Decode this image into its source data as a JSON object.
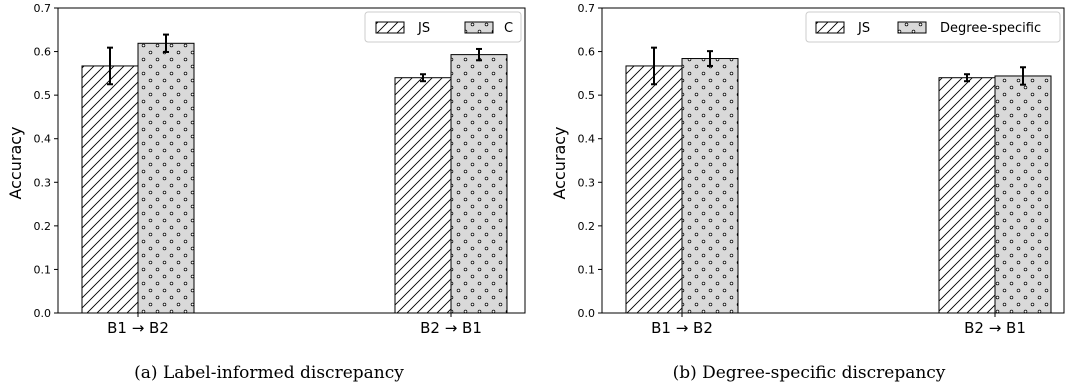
{
  "colors": {
    "hatch_fill": "#ffffff",
    "dot_fill": "#d9d9d9",
    "edge": "#000000"
  },
  "chart_data": [
    {
      "type": "bar",
      "caption": "(a)  Label-informed discrepancy",
      "ylabel": "Accuracy",
      "ylim": [
        0,
        0.7
      ],
      "yticks": [
        "0.0",
        "0.1",
        "0.2",
        "0.3",
        "0.4",
        "0.5",
        "0.6",
        "0.7"
      ],
      "categories": [
        "B1 → B2",
        "B2 → B1"
      ],
      "legend_position": "top-right",
      "grid": false,
      "series": [
        {
          "name": "JS",
          "pattern": "hatch",
          "values": [
            0.567,
            0.54
          ],
          "errors": [
            0.042,
            0.008
          ]
        },
        {
          "name": "C",
          "pattern": "dots",
          "values": [
            0.619,
            0.593
          ],
          "errors": [
            0.02,
            0.013
          ]
        }
      ]
    },
    {
      "type": "bar",
      "caption": "(b)  Degree-specific discrepancy",
      "ylabel": "Accuracy",
      "ylim": [
        0,
        0.7
      ],
      "yticks": [
        "0.0",
        "0.1",
        "0.2",
        "0.3",
        "0.4",
        "0.5",
        "0.6",
        "0.7"
      ],
      "categories": [
        "B1 → B2",
        "B2 → B1"
      ],
      "legend_position": "top-right",
      "grid": false,
      "series": [
        {
          "name": "JS",
          "pattern": "hatch",
          "values": [
            0.567,
            0.54
          ],
          "errors": [
            0.042,
            0.008
          ]
        },
        {
          "name": "Degree-specific",
          "pattern": "dots",
          "values": [
            0.584,
            0.544
          ],
          "errors": [
            0.017,
            0.02
          ]
        }
      ]
    }
  ]
}
